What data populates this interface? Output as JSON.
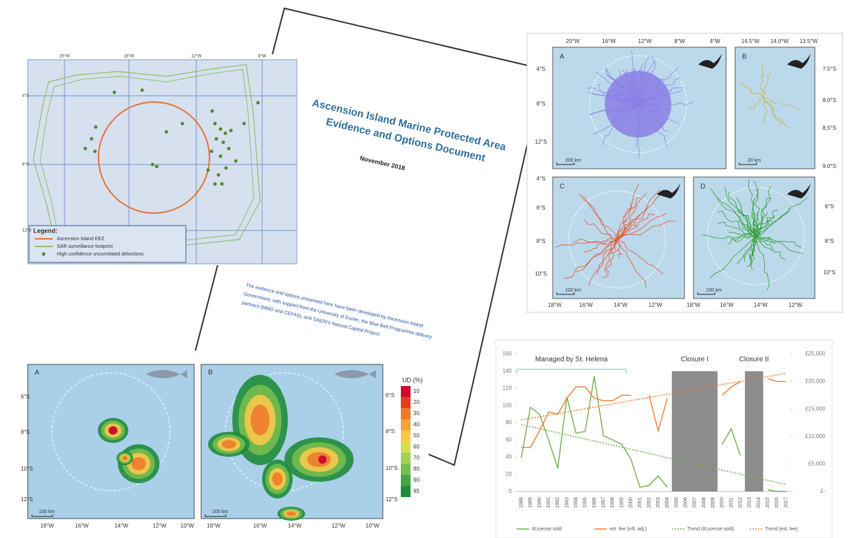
{
  "document": {
    "title_lines": [
      "Ascension Island Marine Protected Area",
      "Evidence and Options Document"
    ],
    "date": "November 2018",
    "paragraph_lines": [
      "The evidence and options presented here have been developed by Ascension Island",
      "Government, with support from the University of Exeter, the Blue Belt Programme delivery",
      "partners (MMO and CEFAS), and SAERI's Natural Capital Project."
    ]
  },
  "sar_map": {
    "x_labels": [
      "20°W",
      "16°W",
      "12°W",
      "8°W"
    ],
    "y_labels": [
      "4°S",
      "8°S",
      "12°S"
    ],
    "legend": {
      "title": "Legend:",
      "items": [
        "Ascension Island EEZ",
        "SAR surveillance footprint",
        "High confidence uncorrelated detections"
      ]
    }
  },
  "seabird_maps": {
    "panels": [
      {
        "label": "A",
        "scale": "200 km"
      },
      {
        "label": "B",
        "scale": "20 km"
      },
      {
        "label": "C",
        "scale": "100 km"
      },
      {
        "label": "D",
        "scale": "100 km"
      }
    ],
    "top_labels_a": [
      "20°W",
      "16°W",
      "12°W",
      "8°W",
      "4°W"
    ],
    "top_labels_b": [
      "14.5°W",
      "14.0°W",
      "13.5°W"
    ],
    "left_labels_a": [
      "4°S",
      "8°S",
      "12°S"
    ],
    "right_labels_b": [
      "7.5°S",
      "8.0°S",
      "8.5°S",
      "9.0°S"
    ],
    "left_labels_c": [
      "4°S",
      "6°S",
      "8°S",
      "10°S"
    ],
    "right_labels_d": [
      "6°S",
      "8°S",
      "10°S"
    ],
    "bottom_labels_c": [
      "18°W",
      "16°W",
      "14°W",
      "12°W"
    ],
    "bottom_labels_d": [
      "18°W",
      "16°W",
      "14°W",
      "12°W"
    ]
  },
  "tuna_maps": {
    "panels": [
      {
        "label": "A",
        "scale": "100 km"
      },
      {
        "label": "B",
        "scale": "100 km"
      }
    ],
    "left_labels": [
      "6°S",
      "8°S",
      "10°S",
      "12°S"
    ],
    "right_labels": [
      "6°S",
      "8°S",
      "10°S",
      "12°S"
    ],
    "bottom_labels_a": [
      "18°W",
      "16°W",
      "14°W",
      "12°W",
      "10°W"
    ],
    "bottom_labels_b": [
      "18°W",
      "16°W",
      "14°W",
      "12°W",
      "10°W"
    ],
    "legend": {
      "title": "UD (%)",
      "items": [
        "10",
        "20",
        "30",
        "40",
        "50",
        "60",
        "70",
        "80",
        "90",
        "95"
      ],
      "colors": [
        "#c8102e",
        "#e0401f",
        "#ee7a2b",
        "#f5a23a",
        "#f7c94a",
        "#d8de4f",
        "#a6d05a",
        "#76bd4f",
        "#44a546",
        "#1f8c3b"
      ]
    }
  },
  "chart_data": {
    "type": "line",
    "categories": [
      "1988",
      "1989",
      "1990",
      "1991",
      "1992",
      "1993",
      "1994",
      "1995",
      "1996",
      "1997",
      "1998",
      "1999",
      "2000",
      "2001",
      "2002",
      "2003",
      "2004",
      "2005",
      "2006",
      "2007",
      "2008",
      "2009",
      "2010",
      "2011",
      "2012",
      "2013",
      "2014",
      "2015",
      "2016",
      "2017"
    ],
    "series": [
      {
        "name": "#License sold",
        "color": "#70ad47",
        "style": "solid",
        "values": [
          39,
          98,
          90,
          60,
          27,
          110,
          68,
          70,
          134,
          65,
          60,
          55,
          38,
          5,
          7,
          18,
          5,
          null,
          null,
          null,
          null,
          null,
          55,
          73,
          42,
          null,
          null,
          2,
          0,
          0
        ]
      },
      {
        "name": "est. fee (infl. adj.)",
        "color": "#ed7d31",
        "style": "solid",
        "axis": "y2",
        "values": [
          8000,
          8000,
          11000,
          14500,
          14000,
          17000,
          19000,
          19000,
          17000,
          16500,
          16500,
          17500,
          17500,
          null,
          17500,
          11000,
          17000,
          null,
          null,
          null,
          null,
          null,
          17500,
          19000,
          20000,
          null,
          null,
          20500,
          20000,
          20000
        ]
      },
      {
        "name": "Trend (#License sold)",
        "color": "#70ad47",
        "style": "dotted",
        "values": [
          78,
          75.6,
          73.2,
          70.8,
          68.4,
          66,
          63.5,
          61.1,
          58.7,
          56.3,
          53.9,
          51.5,
          49.1,
          46.7,
          44.3,
          41.8,
          39.4,
          37,
          34.6,
          32.2,
          29.8,
          27.4,
          25,
          22.6,
          20.2,
          17.7,
          15.3,
          12.9,
          10.5,
          8.1
        ]
      },
      {
        "name": "Trend (est. fee)",
        "color": "#ed7d31",
        "style": "dotted",
        "axis": "y2",
        "values": [
          13000,
          13290,
          13590,
          13880,
          14170,
          14470,
          14760,
          15050,
          15340,
          15640,
          15930,
          16220,
          16520,
          16810,
          17100,
          17400,
          17690,
          17980,
          18270,
          18570,
          18860,
          19150,
          19450,
          19740,
          20030,
          20330,
          20620,
          20910,
          21200,
          21500
        ]
      }
    ],
    "ylim": [
      0,
      160
    ],
    "yticks": [
      0,
      20,
      40,
      60,
      80,
      100,
      120,
      140,
      160
    ],
    "y2lim": [
      0,
      25000
    ],
    "y2ticks": [
      {
        "value": 0,
        "label": "£-"
      },
      {
        "value": 5000,
        "label": "£5,000"
      },
      {
        "value": 10000,
        "label": "£10,000"
      },
      {
        "value": 15000,
        "label": "£15,000"
      },
      {
        "value": 20000,
        "label": "£20,000"
      },
      {
        "value": 25000,
        "label": "£25,000"
      }
    ],
    "spans": [
      {
        "label": "Closure I",
        "start": "2005",
        "end": "2009",
        "top": 140
      },
      {
        "label": "Closure II",
        "start": "2013",
        "end": "2014",
        "top": 140
      }
    ],
    "bracket": {
      "label": "Managed by St. Helena",
      "start": "1988",
      "end": "1999"
    }
  }
}
